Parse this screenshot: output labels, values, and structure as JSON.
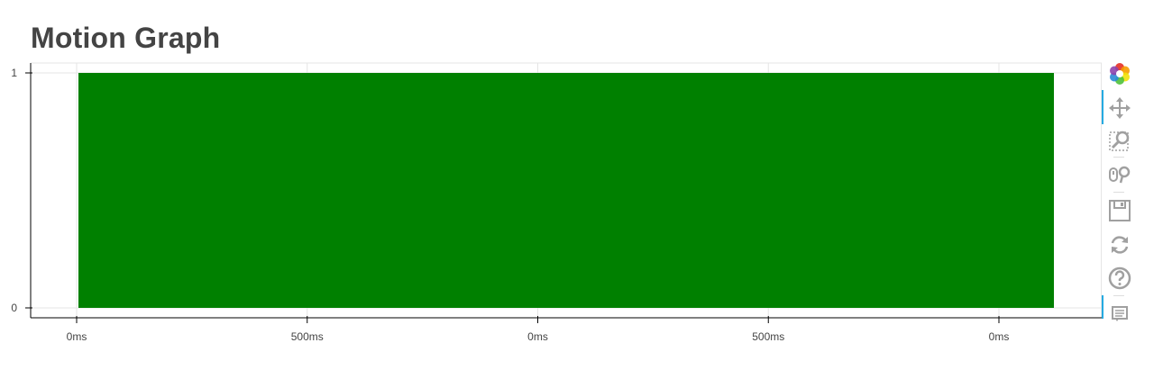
{
  "title": "Motion Graph",
  "chart_data": {
    "type": "bar",
    "title": "Motion Graph",
    "xlabel": "",
    "ylabel": "",
    "x_ticks": [
      "0ms",
      "500ms",
      "0ms",
      "500ms",
      "0ms"
    ],
    "y_ticks": [
      "0",
      "1"
    ],
    "ylim": [
      0,
      1
    ],
    "grid": true,
    "bars": [
      {
        "start_fraction": 0.0,
        "end_fraction": 1.0,
        "value": 1,
        "color": "#008000"
      }
    ]
  },
  "toolbar": {
    "tools": [
      {
        "name": "bokeh-logo-icon",
        "interactable": false
      },
      {
        "name": "pan-tool-icon",
        "interactable": true
      },
      {
        "name": "box-zoom-tool-icon",
        "interactable": true
      },
      {
        "name": "wheel-zoom-tool-icon",
        "interactable": true
      },
      {
        "name": "save-tool-icon",
        "interactable": true
      },
      {
        "name": "reset-tool-icon",
        "interactable": true
      },
      {
        "name": "help-tool-icon",
        "interactable": true
      },
      {
        "name": "hover-tool-icon",
        "interactable": true
      }
    ]
  },
  "colors": {
    "bar": "#008000",
    "axis": "#000000",
    "grid": "#e5e5e5",
    "text": "#444444",
    "title": "#444444",
    "tool_icon": "#a0a0a0",
    "tool_active": "#26aae1"
  }
}
